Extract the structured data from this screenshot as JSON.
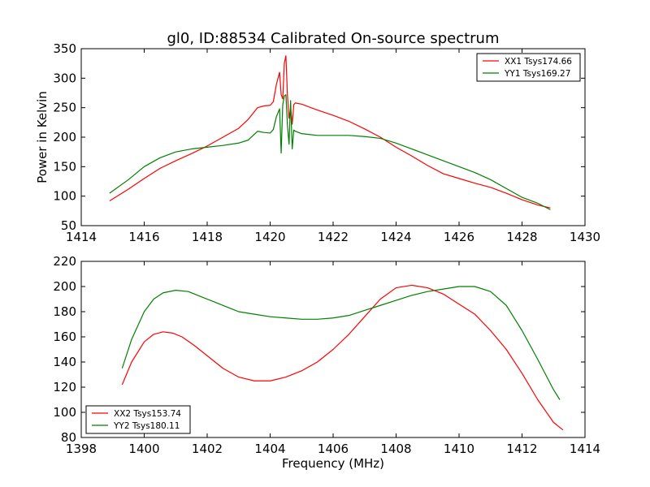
{
  "title": "gl0, ID:88534 Calibrated On-source spectrum",
  "chart_data": [
    {
      "type": "line",
      "ylabel": "Power in Kelvin",
      "xlabel": "",
      "xlim": [
        1414,
        1430
      ],
      "ylim": [
        50,
        350
      ],
      "xticks": [
        1414,
        1416,
        1418,
        1420,
        1422,
        1424,
        1426,
        1428,
        1430
      ],
      "yticks": [
        50,
        100,
        150,
        200,
        250,
        300,
        350
      ],
      "legend_position": "top-right",
      "series": [
        {
          "name": "XX1 Tsys174.66",
          "color": "#ff0000",
          "x": [
            1414.9,
            1415.5,
            1416.0,
            1416.5,
            1417.0,
            1417.5,
            1418.0,
            1418.5,
            1419.0,
            1419.3,
            1419.6,
            1419.8,
            1420.0,
            1420.1,
            1420.2,
            1420.3,
            1420.35,
            1420.4,
            1420.45,
            1420.5,
            1420.55,
            1420.6,
            1420.65,
            1420.7,
            1420.75,
            1420.8,
            1421.0,
            1421.5,
            1422.0,
            1422.5,
            1423.0,
            1423.5,
            1424.0,
            1424.5,
            1425.0,
            1425.5,
            1426.0,
            1426.5,
            1427.0,
            1427.5,
            1428.0,
            1428.5,
            1428.9
          ],
          "y": [
            92,
            112,
            130,
            147,
            160,
            172,
            185,
            200,
            215,
            230,
            250,
            253,
            254,
            260,
            290,
            310,
            272,
            265,
            325,
            338,
            270,
            232,
            250,
            222,
            255,
            258,
            256,
            246,
            237,
            227,
            214,
            200,
            183,
            168,
            152,
            138,
            130,
            122,
            115,
            105,
            94,
            85,
            80
          ]
        },
        {
          "name": "YY1 Tsys169.27",
          "color": "#008000",
          "x": [
            1414.9,
            1415.5,
            1416.0,
            1416.5,
            1417.0,
            1417.5,
            1418.0,
            1418.5,
            1419.0,
            1419.3,
            1419.6,
            1419.8,
            1420.0,
            1420.1,
            1420.2,
            1420.3,
            1420.35,
            1420.4,
            1420.45,
            1420.5,
            1420.55,
            1420.6,
            1420.65,
            1420.7,
            1420.75,
            1420.8,
            1421.0,
            1421.5,
            1422.0,
            1422.5,
            1423.0,
            1423.5,
            1424.0,
            1424.5,
            1425.0,
            1425.5,
            1426.0,
            1426.5,
            1427.0,
            1427.5,
            1428.0,
            1428.5,
            1428.9
          ],
          "y": [
            105,
            128,
            150,
            165,
            175,
            180,
            183,
            186,
            190,
            195,
            210,
            208,
            207,
            213,
            235,
            248,
            173,
            255,
            270,
            272,
            220,
            188,
            262,
            180,
            212,
            210,
            206,
            203,
            203,
            203,
            201,
            198,
            190,
            180,
            170,
            160,
            150,
            140,
            128,
            113,
            98,
            88,
            77
          ]
        }
      ]
    },
    {
      "type": "line",
      "xlabel": "Frequency (MHz)",
      "ylabel": "",
      "xlim": [
        1398,
        1414
      ],
      "ylim": [
        80,
        220
      ],
      "xticks": [
        1398,
        1400,
        1402,
        1404,
        1406,
        1408,
        1410,
        1412,
        1414
      ],
      "yticks": [
        80,
        100,
        120,
        140,
        160,
        180,
        200,
        220
      ],
      "legend_position": "bottom-left",
      "series": [
        {
          "name": "XX2 Tsys153.74",
          "color": "#ff0000",
          "x": [
            1399.3,
            1399.6,
            1400.0,
            1400.3,
            1400.6,
            1400.9,
            1401.2,
            1401.6,
            1402.0,
            1402.5,
            1403.0,
            1403.5,
            1404.0,
            1404.5,
            1405.0,
            1405.5,
            1406.0,
            1406.5,
            1407.0,
            1407.5,
            1408.0,
            1408.5,
            1409.0,
            1409.5,
            1410.0,
            1410.5,
            1411.0,
            1411.5,
            1412.0,
            1412.5,
            1413.0,
            1413.3
          ],
          "y": [
            122,
            140,
            156,
            162,
            164,
            163,
            160,
            153,
            145,
            135,
            128,
            125,
            125,
            128,
            133,
            140,
            150,
            162,
            176,
            190,
            199,
            201,
            199,
            194,
            186,
            178,
            165,
            150,
            131,
            110,
            92,
            86
          ]
        },
        {
          "name": "YY2 Tsys180.11",
          "color": "#008000",
          "x": [
            1399.3,
            1399.6,
            1400.0,
            1400.3,
            1400.6,
            1401.0,
            1401.4,
            1401.8,
            1402.2,
            1402.6,
            1403.0,
            1403.5,
            1404.0,
            1404.5,
            1405.0,
            1405.5,
            1406.0,
            1406.5,
            1407.0,
            1407.5,
            1408.0,
            1408.5,
            1409.0,
            1409.5,
            1410.0,
            1410.5,
            1411.0,
            1411.5,
            1412.0,
            1412.5,
            1413.0,
            1413.2
          ],
          "y": [
            135,
            158,
            180,
            190,
            195,
            197,
            196,
            192,
            188,
            184,
            180,
            178,
            176,
            175,
            174,
            174,
            175,
            177,
            181,
            185,
            189,
            193,
            196,
            198,
            200,
            200,
            196,
            185,
            165,
            142,
            118,
            110
          ]
        }
      ]
    }
  ]
}
